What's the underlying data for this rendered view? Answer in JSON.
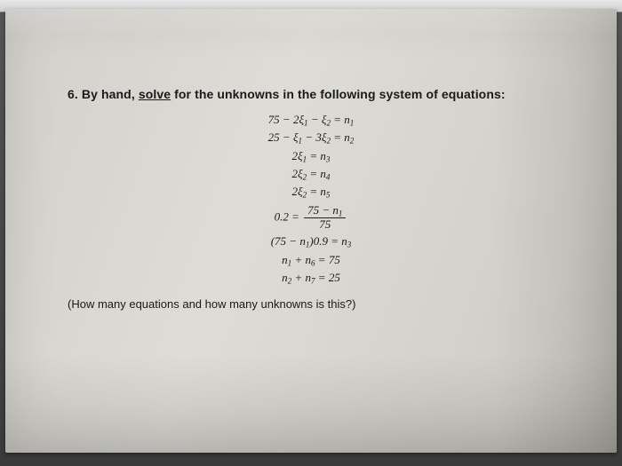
{
  "problem": {
    "number": "6.",
    "head_pre": "By hand, ",
    "head_verb": "solve",
    "head_post": " for the unknowns in the following system of equations:"
  },
  "equations": {
    "e1": "75 − 2ξ₁ − ξ₂ = n₁",
    "e2": "25 − ξ₁ − 3ξ₂ = n₂",
    "e3": "2ξ₁ = n₃",
    "e4": "2ξ₂ = n₄",
    "e5": "2ξ₂ = n₅",
    "e6_lhs": "0.2 =",
    "e6_num": "75 − n₁",
    "e6_den": "75",
    "e7": "(75 − n₁)0.9 = n₃",
    "e8": "n₁ + n₆ = 75",
    "e9": "n₂ + n₇ = 25"
  },
  "footer": "(How many equations and how many unknowns is this?)"
}
